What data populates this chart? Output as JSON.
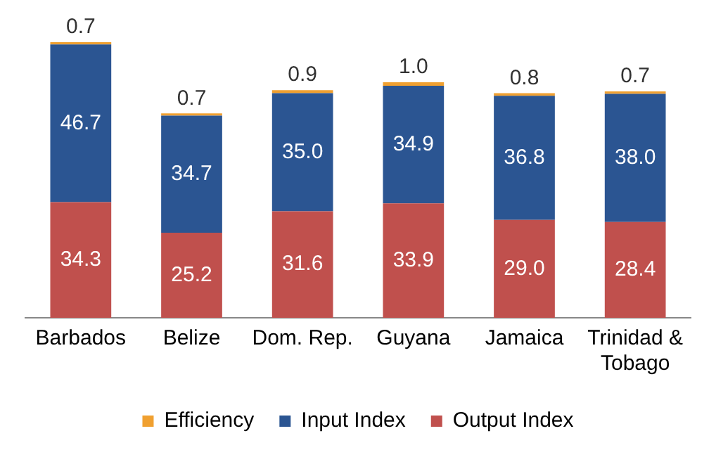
{
  "chart_data": {
    "type": "bar",
    "stacked": true,
    "legend": "bottom",
    "grid": false,
    "categories": [
      "Barbados",
      "Belize",
      "Dom. Rep.",
      "Guyana",
      "Jamaica",
      "Trinidad & Tobago"
    ],
    "series": [
      {
        "name": "Output Index",
        "color": "#c0504d",
        "values": [
          34.3,
          25.2,
          31.6,
          33.9,
          29.0,
          28.4
        ],
        "value_labels": [
          "34.3",
          "25.2",
          "31.6",
          "33.9",
          "29.0",
          "28.4"
        ]
      },
      {
        "name": "Input Index",
        "color": "#2b5592",
        "values": [
          46.7,
          34.7,
          35.0,
          34.9,
          36.8,
          38.0
        ],
        "value_labels": [
          "46.7",
          "34.7",
          "35.0",
          "34.9",
          "36.8",
          "38.0"
        ]
      },
      {
        "name": "Efficiency",
        "color": "#f0a030",
        "values": [
          0.7,
          0.7,
          0.9,
          1.0,
          0.8,
          0.7
        ],
        "value_labels": [
          "0.7",
          "0.7",
          "0.9",
          "1.0",
          "0.8",
          "0.7"
        ]
      }
    ]
  }
}
